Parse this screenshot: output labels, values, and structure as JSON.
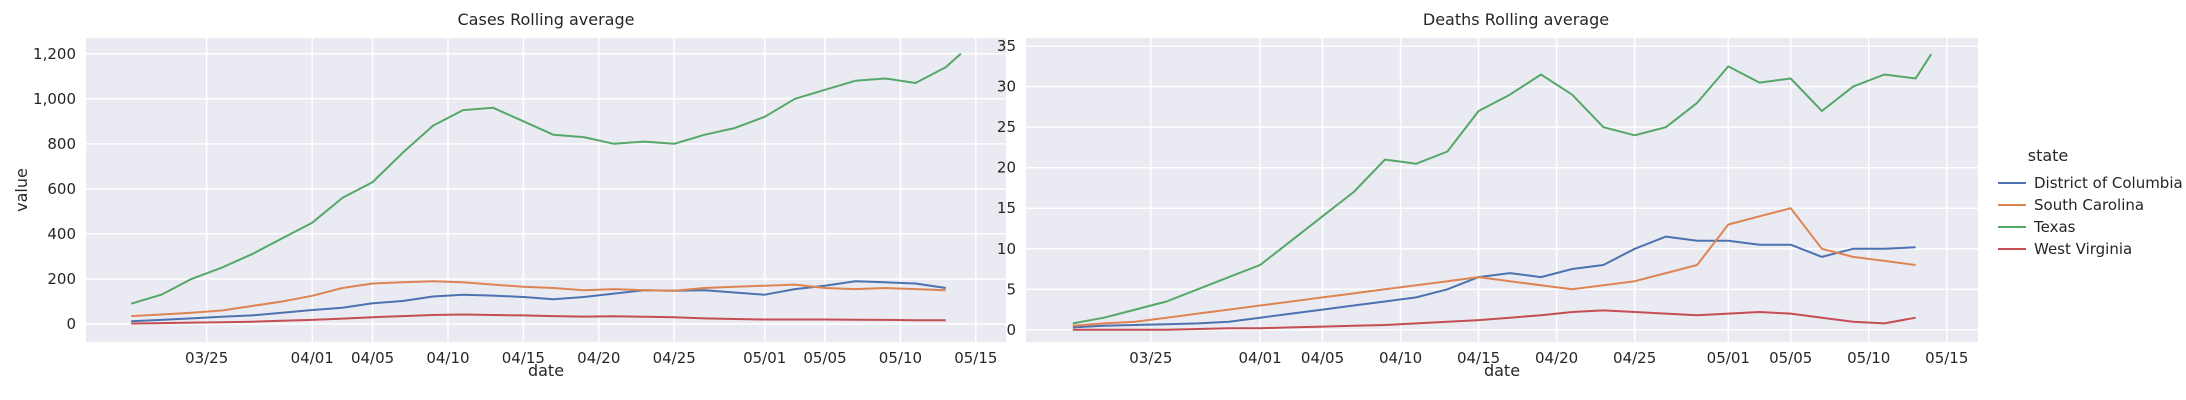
{
  "figure": {
    "legend_title": "state",
    "legend_position": "right",
    "shared_x_label": "date"
  },
  "chart_data": [
    {
      "type": "line",
      "title": "Cases Rolling average",
      "xlabel": "date",
      "ylabel": "value",
      "x_ticks": [
        "03/25",
        "04/01",
        "04/05",
        "04/10",
        "04/15",
        "04/20",
        "04/25",
        "05/01",
        "05/05",
        "05/10",
        "05/15"
      ],
      "y_ticks": [
        0,
        200,
        400,
        600,
        800,
        1000,
        1200
      ],
      "y_tick_labels": [
        "0",
        "200",
        "400",
        "600",
        "800",
        "1,000",
        "1,200"
      ],
      "ylim": [
        -80,
        1270
      ],
      "xlim": [
        "2020-03-17",
        "2020-05-17"
      ],
      "grid": true,
      "series": [
        {
          "name": "District of Columbia",
          "color": "#4c72b0",
          "x": [
            "2020-03-20",
            "2020-03-22",
            "2020-03-24",
            "2020-03-26",
            "2020-03-28",
            "2020-03-30",
            "2020-04-01",
            "2020-04-03",
            "2020-04-05",
            "2020-04-07",
            "2020-04-09",
            "2020-04-11",
            "2020-04-13",
            "2020-04-15",
            "2020-04-17",
            "2020-04-19",
            "2020-04-21",
            "2020-04-23",
            "2020-04-25",
            "2020-04-27",
            "2020-04-29",
            "2020-05-01",
            "2020-05-03",
            "2020-05-05",
            "2020-05-07",
            "2020-05-09",
            "2020-05-11",
            "2020-05-13"
          ],
          "y": [
            12,
            18,
            25,
            32,
            38,
            50,
            62,
            72,
            92,
            102,
            122,
            130,
            126,
            120,
            110,
            120,
            135,
            150,
            148,
            150,
            140,
            130,
            155,
            170,
            190,
            185,
            180,
            160
          ]
        },
        {
          "name": "South Carolina",
          "color": "#dd8452",
          "x": [
            "2020-03-20",
            "2020-03-22",
            "2020-03-24",
            "2020-03-26",
            "2020-03-28",
            "2020-03-30",
            "2020-04-01",
            "2020-04-03",
            "2020-04-05",
            "2020-04-07",
            "2020-04-09",
            "2020-04-11",
            "2020-04-13",
            "2020-04-15",
            "2020-04-17",
            "2020-04-19",
            "2020-04-21",
            "2020-04-23",
            "2020-04-25",
            "2020-04-27",
            "2020-04-29",
            "2020-05-01",
            "2020-05-03",
            "2020-05-05",
            "2020-05-07",
            "2020-05-09",
            "2020-05-11",
            "2020-05-13"
          ],
          "y": [
            35,
            42,
            50,
            60,
            80,
            100,
            125,
            160,
            180,
            185,
            190,
            185,
            175,
            165,
            160,
            150,
            155,
            150,
            148,
            160,
            165,
            170,
            175,
            160,
            155,
            160,
            155,
            150
          ]
        },
        {
          "name": "Texas",
          "color": "#55a868",
          "x": [
            "2020-03-20",
            "2020-03-22",
            "2020-03-24",
            "2020-03-26",
            "2020-03-28",
            "2020-03-30",
            "2020-04-01",
            "2020-04-03",
            "2020-04-05",
            "2020-04-07",
            "2020-04-09",
            "2020-04-11",
            "2020-04-13",
            "2020-04-15",
            "2020-04-17",
            "2020-04-19",
            "2020-04-21",
            "2020-04-23",
            "2020-04-25",
            "2020-04-27",
            "2020-04-29",
            "2020-05-01",
            "2020-05-03",
            "2020-05-05",
            "2020-05-07",
            "2020-05-09",
            "2020-05-11",
            "2020-05-13",
            "2020-05-14"
          ],
          "y": [
            90,
            130,
            200,
            250,
            310,
            380,
            450,
            560,
            630,
            760,
            880,
            950,
            960,
            900,
            840,
            830,
            800,
            810,
            800,
            840,
            870,
            920,
            1000,
            1040,
            1080,
            1090,
            1070,
            1140,
            1200
          ]
        },
        {
          "name": "West Virginia",
          "color": "#c44e52",
          "x": [
            "2020-03-20",
            "2020-03-22",
            "2020-03-24",
            "2020-03-26",
            "2020-03-28",
            "2020-03-30",
            "2020-04-01",
            "2020-04-03",
            "2020-04-05",
            "2020-04-07",
            "2020-04-09",
            "2020-04-11",
            "2020-04-13",
            "2020-04-15",
            "2020-04-17",
            "2020-04-19",
            "2020-04-21",
            "2020-04-23",
            "2020-04-25",
            "2020-04-27",
            "2020-04-29",
            "2020-05-01",
            "2020-05-03",
            "2020-05-05",
            "2020-05-07",
            "2020-05-09",
            "2020-05-11",
            "2020-05-13"
          ],
          "y": [
            2,
            4,
            6,
            8,
            10,
            14,
            18,
            24,
            30,
            35,
            40,
            42,
            40,
            38,
            35,
            33,
            34,
            32,
            30,
            25,
            22,
            20,
            20,
            20,
            19,
            18,
            17,
            17
          ]
        }
      ]
    },
    {
      "type": "line",
      "title": "Deaths Rolling average",
      "xlabel": "date",
      "ylabel": "",
      "x_ticks": [
        "03/25",
        "04/01",
        "04/05",
        "04/10",
        "04/15",
        "04/20",
        "04/25",
        "05/01",
        "05/05",
        "05/10",
        "05/15"
      ],
      "y_ticks": [
        0,
        5,
        10,
        15,
        20,
        25,
        30,
        35
      ],
      "y_tick_labels": [
        "0",
        "5",
        "10",
        "15",
        "20",
        "25",
        "30",
        "35"
      ],
      "ylim": [
        -1.5,
        36
      ],
      "xlim": [
        "2020-03-17",
        "2020-05-17"
      ],
      "grid": true,
      "series": [
        {
          "name": "District of Columbia",
          "color": "#4c72b0",
          "x": [
            "2020-03-20",
            "2020-03-22",
            "2020-03-24",
            "2020-03-26",
            "2020-03-28",
            "2020-03-30",
            "2020-04-01",
            "2020-04-03",
            "2020-04-05",
            "2020-04-07",
            "2020-04-09",
            "2020-04-11",
            "2020-04-13",
            "2020-04-15",
            "2020-04-17",
            "2020-04-19",
            "2020-04-21",
            "2020-04-23",
            "2020-04-25",
            "2020-04-27",
            "2020-04-29",
            "2020-05-01",
            "2020-05-03",
            "2020-05-05",
            "2020-05-07",
            "2020-05-08",
            "2020-05-09",
            "2020-05-11",
            "2020-05-13"
          ],
          "y": [
            0.3,
            0.5,
            0.6,
            0.7,
            0.8,
            1.0,
            1.5,
            2.0,
            2.5,
            3.0,
            3.5,
            4.0,
            5.0,
            6.5,
            7.0,
            6.5,
            7.5,
            8.0,
            10.0,
            11.5,
            11.0,
            11.0,
            10.5,
            10.5,
            9.0,
            9.5,
            10.0,
            10.0,
            10.2
          ]
        },
        {
          "name": "South Carolina",
          "color": "#dd8452",
          "x": [
            "2020-03-20",
            "2020-03-22",
            "2020-03-24",
            "2020-03-26",
            "2020-03-28",
            "2020-03-30",
            "2020-04-01",
            "2020-04-03",
            "2020-04-05",
            "2020-04-07",
            "2020-04-09",
            "2020-04-11",
            "2020-04-13",
            "2020-04-15",
            "2020-04-17",
            "2020-04-19",
            "2020-04-21",
            "2020-04-23",
            "2020-04-25",
            "2020-04-27",
            "2020-04-29",
            "2020-05-01",
            "2020-05-03",
            "2020-05-04",
            "2020-05-05",
            "2020-05-07",
            "2020-05-09",
            "2020-05-11",
            "2020-05-13"
          ],
          "y": [
            0.5,
            0.8,
            1.0,
            1.5,
            2.0,
            2.5,
            3.0,
            3.5,
            4.0,
            4.5,
            5.0,
            5.5,
            6.0,
            6.5,
            6.0,
            5.5,
            5.0,
            5.5,
            6.0,
            7.0,
            8.0,
            13.0,
            14.0,
            14.5,
            15.0,
            10.0,
            9.0,
            8.5,
            8.0
          ]
        },
        {
          "name": "Texas",
          "color": "#55a868",
          "x": [
            "2020-03-20",
            "2020-03-22",
            "2020-03-24",
            "2020-03-26",
            "2020-03-28",
            "2020-03-30",
            "2020-04-01",
            "2020-04-03",
            "2020-04-05",
            "2020-04-07",
            "2020-04-09",
            "2020-04-11",
            "2020-04-13",
            "2020-04-15",
            "2020-04-17",
            "2020-04-19",
            "2020-04-21",
            "2020-04-23",
            "2020-04-25",
            "2020-04-27",
            "2020-04-29",
            "2020-05-01",
            "2020-05-03",
            "2020-05-05",
            "2020-05-07",
            "2020-05-09",
            "2020-05-11",
            "2020-05-13",
            "2020-05-14"
          ],
          "y": [
            0.8,
            1.5,
            2.5,
            3.5,
            5.0,
            6.5,
            8.0,
            11.0,
            14.0,
            17.0,
            21.0,
            20.5,
            22.0,
            27.0,
            29.0,
            31.5,
            29.0,
            25.0,
            24.0,
            25.0,
            28.0,
            32.5,
            30.5,
            31.0,
            27.0,
            30.0,
            31.5,
            31.0,
            34.0
          ]
        },
        {
          "name": "West Virginia",
          "color": "#c44e52",
          "x": [
            "2020-03-20",
            "2020-03-22",
            "2020-03-24",
            "2020-03-26",
            "2020-03-28",
            "2020-03-30",
            "2020-04-01",
            "2020-04-03",
            "2020-04-05",
            "2020-04-07",
            "2020-04-09",
            "2020-04-11",
            "2020-04-13",
            "2020-04-15",
            "2020-04-17",
            "2020-04-19",
            "2020-04-21",
            "2020-04-23",
            "2020-04-25",
            "2020-04-27",
            "2020-04-29",
            "2020-05-01",
            "2020-05-03",
            "2020-05-05",
            "2020-05-07",
            "2020-05-09",
            "2020-05-11",
            "2020-05-13"
          ],
          "y": [
            0.0,
            0.0,
            0.0,
            0.0,
            0.1,
            0.2,
            0.2,
            0.3,
            0.4,
            0.5,
            0.6,
            0.8,
            1.0,
            1.2,
            1.5,
            1.8,
            2.2,
            2.4,
            2.2,
            2.0,
            1.8,
            2.0,
            2.2,
            2.0,
            1.5,
            1.0,
            0.8,
            1.5
          ]
        }
      ]
    }
  ]
}
